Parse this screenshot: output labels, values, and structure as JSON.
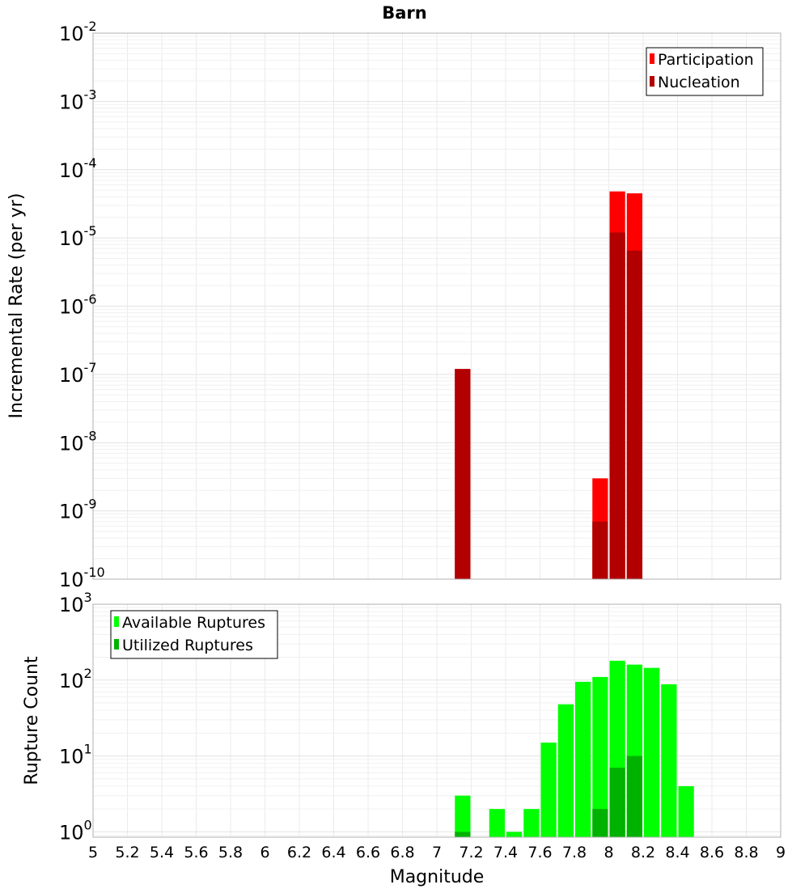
{
  "title": "Barn",
  "xlabel": "Magnitude",
  "x_ticks": [
    "5",
    "5.2",
    "5.4",
    "5.6",
    "5.8",
    "6",
    "6.2",
    "6.4",
    "6.6",
    "6.8",
    "7",
    "7.2",
    "7.4",
    "7.6",
    "7.8",
    "8",
    "8.2",
    "8.4",
    "8.6",
    "8.8",
    "9"
  ],
  "chart_data": [
    {
      "type": "bar",
      "panel": "top",
      "ylabel": "Incremental Rate (per yr)",
      "yscale": "log",
      "xlim": [
        5,
        9
      ],
      "ylim": [
        1e-10,
        0.01
      ],
      "y_tick_labels": [
        {
          "base": "10",
          "exp": "-2"
        },
        {
          "base": "10",
          "exp": "-3"
        },
        {
          "base": "10",
          "exp": "-4"
        },
        {
          "base": "10",
          "exp": "-5"
        },
        {
          "base": "10",
          "exp": "-6"
        },
        {
          "base": "10",
          "exp": "-7"
        },
        {
          "base": "10",
          "exp": "-8"
        },
        {
          "base": "10",
          "exp": "-9"
        },
        {
          "base": "10",
          "exp": "-10"
        }
      ],
      "legend_position": "top-right",
      "bar_width": 0.1,
      "series": [
        {
          "name": "Participation",
          "color": "#ff0000",
          "x": [
            7.15,
            7.95,
            8.05,
            8.15
          ],
          "values": [
            1.2e-07,
            3e-09,
            4.8e-05,
            4.5e-05
          ]
        },
        {
          "name": "Nucleation",
          "color": "#b20000",
          "x": [
            7.15,
            7.95,
            8.05,
            8.15
          ],
          "values": [
            1.2e-07,
            7e-10,
            1.2e-05,
            6.5e-06
          ]
        }
      ]
    },
    {
      "type": "bar",
      "panel": "bottom",
      "ylabel": "Rupture Count",
      "yscale": "log",
      "xlim": [
        5,
        9
      ],
      "ylim": [
        0.85,
        1000
      ],
      "y_tick_labels": [
        {
          "base": "10",
          "exp": "3"
        },
        {
          "base": "10",
          "exp": "2"
        },
        {
          "base": "10",
          "exp": "1"
        },
        {
          "base": "10",
          "exp": "0"
        }
      ],
      "legend_position": "top-left",
      "bar_width": 0.1,
      "series": [
        {
          "name": "Available Ruptures",
          "color": "#00ff00",
          "x": [
            7.15,
            7.35,
            7.45,
            7.55,
            7.65,
            7.75,
            7.85,
            7.95,
            8.05,
            8.15,
            8.25,
            8.35,
            8.45
          ],
          "values": [
            3,
            2,
            1,
            2,
            15,
            48,
            95,
            110,
            180,
            160,
            145,
            88,
            4
          ]
        },
        {
          "name": "Utilized Ruptures",
          "color": "#00b200",
          "x": [
            7.15,
            7.95,
            8.05,
            8.15
          ],
          "values": [
            1,
            2,
            7,
            10
          ]
        }
      ]
    }
  ]
}
